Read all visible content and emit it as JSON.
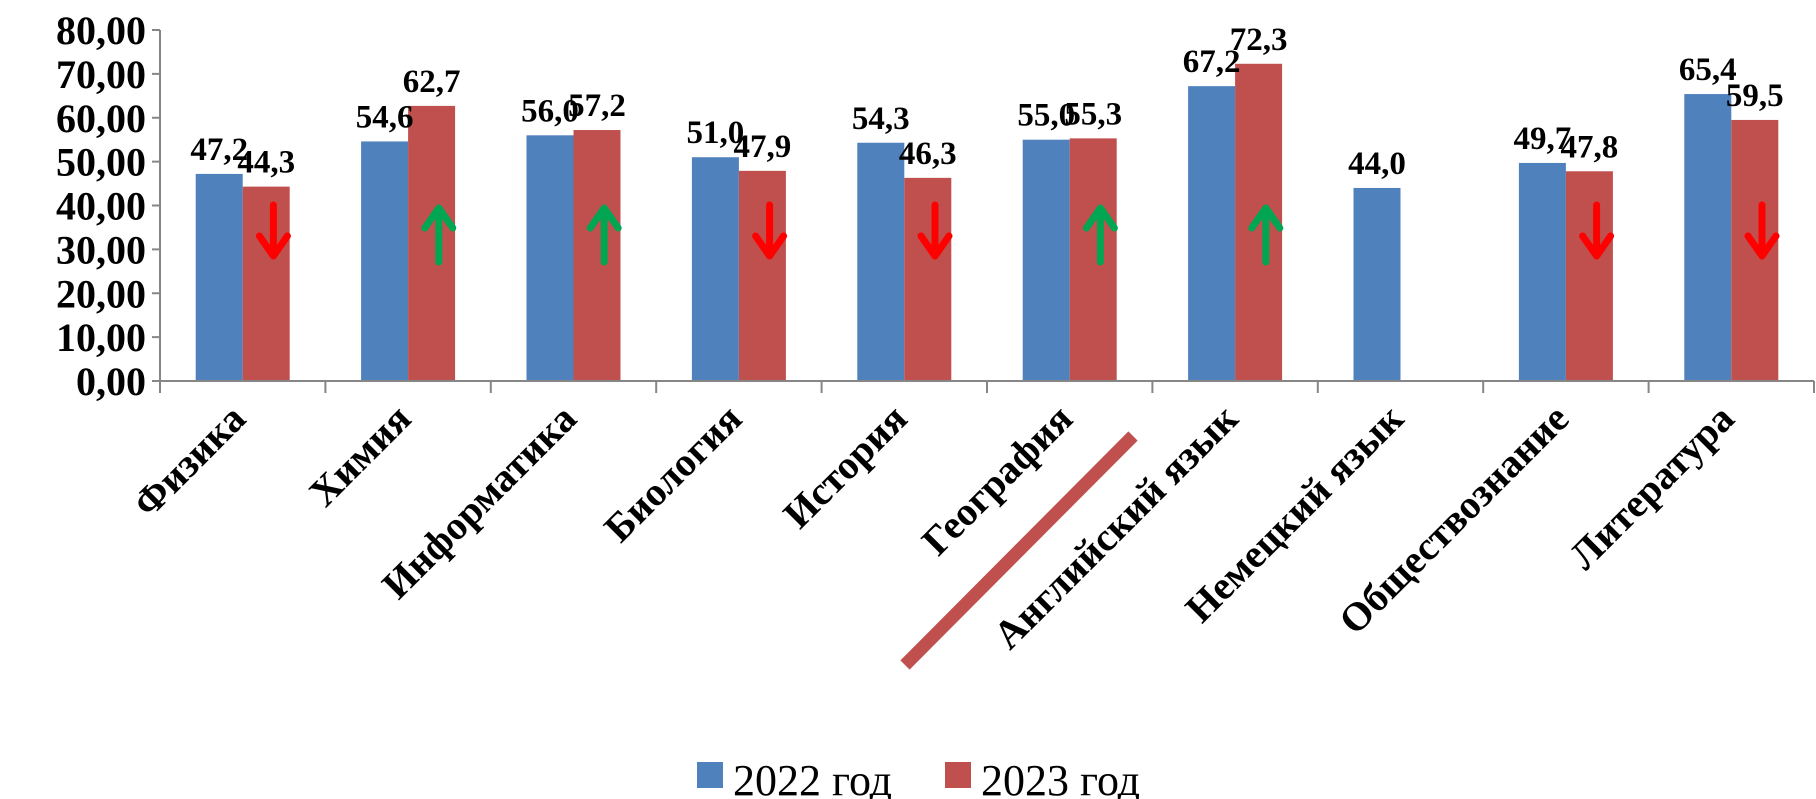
{
  "chart_data": {
    "type": "bar",
    "categories": [
      "Физика",
      "Химия",
      "Информатика",
      "Биология",
      "История",
      "География",
      "Английский язык",
      "Немецкий язык",
      "Обществознание",
      "Литература"
    ],
    "series": [
      {
        "name": "2022 год",
        "color": "#4F81BD",
        "values": [
          47.2,
          54.6,
          56.0,
          51.0,
          54.3,
          55.0,
          67.2,
          44.0,
          49.7,
          65.4
        ],
        "labels": [
          "47,2",
          "54,6",
          "56,0",
          "51,0",
          "54,3",
          "55,0",
          "67,2",
          "44,0",
          "49,7",
          "65,4"
        ]
      },
      {
        "name": "2023 год",
        "color": "#C0504D",
        "values": [
          44.3,
          62.7,
          57.2,
          47.9,
          46.3,
          55.3,
          72.3,
          null,
          47.8,
          59.5
        ],
        "labels": [
          "44,3",
          "62,7",
          "57,2",
          "47,9",
          "46,3",
          "55,3",
          "72,3",
          null,
          "47,8",
          "59,5"
        ]
      }
    ],
    "trends": [
      "down",
      "up",
      "up",
      "down",
      "down",
      "up",
      "up",
      null,
      "down",
      "down"
    ],
    "trend_colors": {
      "up": "#00A651",
      "down": "#FF0000"
    },
    "ylim": [
      0,
      80
    ],
    "yticks": [
      "0,00",
      "10,00",
      "20,00",
      "30,00",
      "40,00",
      "50,00",
      "60,00",
      "70,00",
      "80,00"
    ],
    "grid": false,
    "legend_position": "bottom",
    "annotation_color": "#C0504D"
  }
}
